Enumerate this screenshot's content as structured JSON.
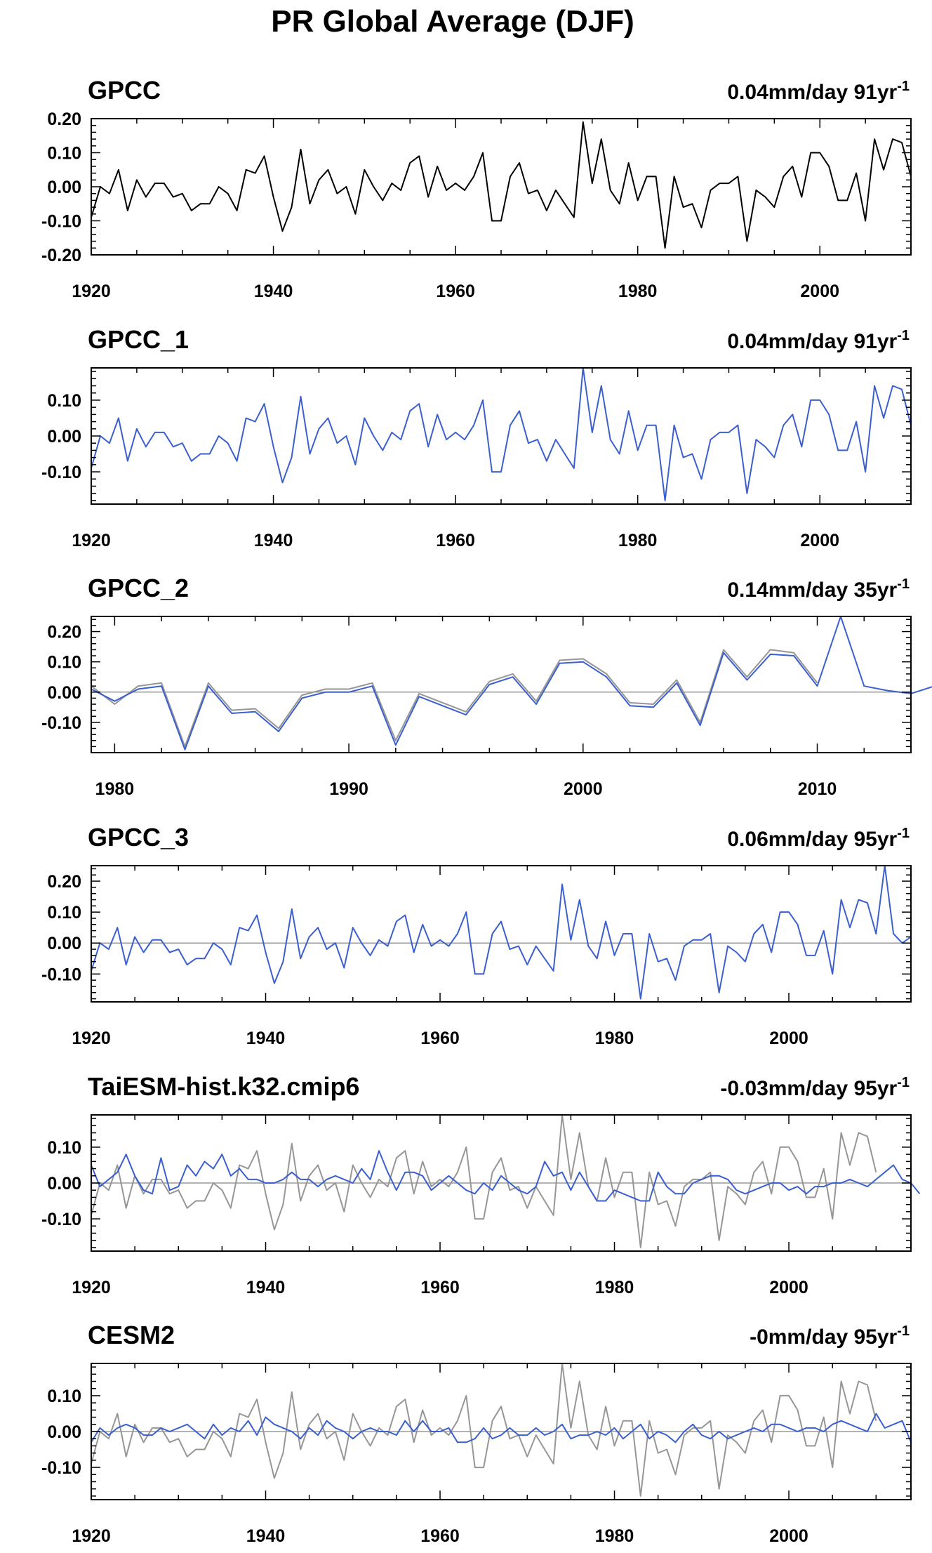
{
  "figure_title": "PR Global Average (DJF)",
  "colors": {
    "obs_black": "#000000",
    "model_blue": "#3b5fcf",
    "reference_gray": "#969696",
    "axis": "#000000",
    "zero_line": "#9a9a9a"
  },
  "chart_data": [
    {
      "type": "line",
      "title": "GPCC",
      "trend_text": "0.04mm/day 91yr",
      "trend_superscript": "-1",
      "xlim": [
        1920,
        2010
      ],
      "ylim": [
        -0.2,
        0.2
      ],
      "xticks": [
        1920,
        1940,
        1960,
        1980,
        2000
      ],
      "xtick_labels": [
        "1920",
        "1940",
        "1960",
        "1980",
        "2000"
      ],
      "yticks": [
        -0.2,
        -0.1,
        0.0,
        0.1,
        0.2
      ],
      "ytick_labels": [
        "-0.20",
        "-0.10",
        "0.00",
        "0.10",
        "0.20"
      ],
      "zero_line": false,
      "series": [
        {
          "role": "primary",
          "color": "#000000",
          "x_start": 1920,
          "values": [
            -0.09,
            0.0,
            -0.02,
            0.05,
            -0.07,
            0.02,
            -0.03,
            0.01,
            0.01,
            -0.03,
            -0.02,
            -0.07,
            -0.05,
            -0.05,
            0.0,
            -0.02,
            -0.07,
            0.05,
            0.04,
            0.09,
            -0.03,
            -0.13,
            -0.06,
            0.11,
            -0.05,
            0.02,
            0.05,
            -0.02,
            0.0,
            -0.08,
            0.05,
            0.0,
            -0.04,
            0.01,
            -0.01,
            0.07,
            0.09,
            -0.03,
            0.06,
            -0.01,
            0.01,
            -0.01,
            0.03,
            0.1,
            -0.1,
            -0.1,
            0.03,
            0.07,
            -0.02,
            -0.01,
            -0.07,
            -0.01,
            -0.05,
            -0.09,
            0.19,
            0.01,
            0.14,
            -0.01,
            -0.05,
            0.07,
            -0.04,
            0.03,
            0.03,
            -0.18,
            0.03,
            -0.06,
            -0.05,
            -0.12,
            -0.01,
            0.01,
            0.01,
            0.03,
            -0.16,
            -0.01,
            -0.03,
            -0.06,
            0.03,
            0.06,
            -0.03,
            0.1,
            0.1,
            0.06,
            -0.04,
            -0.04,
            0.04,
            -0.1,
            0.14,
            0.05,
            0.14,
            0.13,
            0.03
          ]
        }
      ]
    },
    {
      "type": "line",
      "title": "GPCC_1",
      "trend_text": "0.04mm/day 91yr",
      "trend_superscript": "-1",
      "xlim": [
        1920,
        2010
      ],
      "ylim": [
        -0.19,
        0.19
      ],
      "xticks": [
        1920,
        1940,
        1960,
        1980,
        2000
      ],
      "xtick_labels": [
        "1920",
        "1940",
        "1960",
        "1980",
        "2000"
      ],
      "yticks": [
        -0.1,
        0.0,
        0.1
      ],
      "ytick_labels": [
        "-0.10",
        "0.00",
        "0.10"
      ],
      "zero_line": false,
      "series": [
        {
          "role": "primary",
          "color": "#3b5fcf",
          "x_start": 1920,
          "values": [
            -0.09,
            0.0,
            -0.02,
            0.05,
            -0.07,
            0.02,
            -0.03,
            0.01,
            0.01,
            -0.03,
            -0.02,
            -0.07,
            -0.05,
            -0.05,
            0.0,
            -0.02,
            -0.07,
            0.05,
            0.04,
            0.09,
            -0.03,
            -0.13,
            -0.06,
            0.11,
            -0.05,
            0.02,
            0.05,
            -0.02,
            0.0,
            -0.08,
            0.05,
            0.0,
            -0.04,
            0.01,
            -0.01,
            0.07,
            0.09,
            -0.03,
            0.06,
            -0.01,
            0.01,
            -0.01,
            0.03,
            0.1,
            -0.1,
            -0.1,
            0.03,
            0.07,
            -0.02,
            -0.01,
            -0.07,
            -0.01,
            -0.05,
            -0.09,
            0.19,
            0.01,
            0.14,
            -0.01,
            -0.05,
            0.07,
            -0.04,
            0.03,
            0.03,
            -0.18,
            0.03,
            -0.06,
            -0.05,
            -0.12,
            -0.01,
            0.01,
            0.01,
            0.03,
            -0.16,
            -0.01,
            -0.03,
            -0.06,
            0.03,
            0.06,
            -0.03,
            0.1,
            0.1,
            0.06,
            -0.04,
            -0.04,
            0.04,
            -0.1,
            0.14,
            0.05,
            0.14,
            0.13,
            0.03
          ]
        }
      ]
    },
    {
      "type": "line",
      "title": "GPCC_2",
      "trend_text": "0.14mm/day 35yr",
      "trend_superscript": "-1",
      "xlim": [
        1979,
        2014
      ],
      "ylim": [
        -0.2,
        0.25
      ],
      "xticks": [
        1980,
        1990,
        2000,
        2010
      ],
      "xtick_labels": [
        "1980",
        "1990",
        "2000",
        "2010"
      ],
      "yticks": [
        -0.1,
        0.0,
        0.1,
        0.2
      ],
      "ytick_labels": [
        "-0.10",
        "0.00",
        "0.10",
        "0.20"
      ],
      "zero_line": true,
      "series": [
        {
          "role": "reference",
          "color": "#969696",
          "x_start": 1979,
          "values": [
            0.02,
            -0.04,
            0.02,
            0.03,
            -0.18,
            0.03,
            -0.06,
            -0.055,
            -0.12,
            -0.01,
            0.01,
            0.01,
            0.03,
            -0.16,
            -0.005,
            -0.035,
            -0.065,
            0.035,
            0.06,
            -0.03,
            0.105,
            0.11,
            0.06,
            -0.035,
            -0.04,
            0.04,
            -0.1,
            0.14,
            0.05,
            0.14,
            0.13,
            0.03
          ]
        },
        {
          "role": "primary",
          "color": "#3b5fcf",
          "x_start": 1979,
          "values": [
            0.01,
            -0.03,
            0.01,
            0.02,
            -0.19,
            0.02,
            -0.07,
            -0.065,
            -0.13,
            -0.02,
            0.0,
            0.0,
            0.02,
            -0.175,
            -0.015,
            -0.045,
            -0.075,
            0.025,
            0.05,
            -0.04,
            0.095,
            0.1,
            0.05,
            -0.045,
            -0.05,
            0.03,
            -0.11,
            0.13,
            0.04,
            0.125,
            0.12,
            0.02,
            0.25,
            0.02,
            0.005,
            -0.005,
            0.02
          ]
        }
      ]
    },
    {
      "type": "line",
      "title": "GPCC_3",
      "trend_text": "0.06mm/day 95yr",
      "trend_superscript": "-1",
      "xlim": [
        1920,
        2014
      ],
      "ylim": [
        -0.19,
        0.25
      ],
      "xticks": [
        1920,
        1940,
        1960,
        1980,
        2000
      ],
      "xtick_labels": [
        "1920",
        "1940",
        "1960",
        "1980",
        "2000"
      ],
      "yticks": [
        -0.1,
        0.0,
        0.1,
        0.2
      ],
      "ytick_labels": [
        "-0.10",
        "0.00",
        "0.10",
        "0.20"
      ],
      "zero_line": true,
      "series": [
        {
          "role": "primary",
          "color": "#3b5fcf",
          "x_start": 1920,
          "values": [
            -0.09,
            0.0,
            -0.02,
            0.05,
            -0.07,
            0.02,
            -0.03,
            0.01,
            0.01,
            -0.03,
            -0.02,
            -0.07,
            -0.05,
            -0.05,
            0.0,
            -0.02,
            -0.07,
            0.05,
            0.04,
            0.09,
            -0.03,
            -0.13,
            -0.06,
            0.11,
            -0.05,
            0.02,
            0.05,
            -0.02,
            0.0,
            -0.08,
            0.05,
            0.0,
            -0.04,
            0.01,
            -0.01,
            0.07,
            0.09,
            -0.03,
            0.06,
            -0.01,
            0.01,
            -0.01,
            0.03,
            0.1,
            -0.1,
            -0.1,
            0.03,
            0.07,
            -0.02,
            -0.01,
            -0.07,
            -0.01,
            -0.05,
            -0.09,
            0.19,
            0.01,
            0.14,
            -0.01,
            -0.05,
            0.07,
            -0.04,
            0.03,
            0.03,
            -0.18,
            0.03,
            -0.06,
            -0.05,
            -0.12,
            -0.01,
            0.01,
            0.01,
            0.03,
            -0.16,
            -0.01,
            -0.03,
            -0.06,
            0.03,
            0.06,
            -0.03,
            0.1,
            0.1,
            0.06,
            -0.04,
            -0.04,
            0.04,
            -0.1,
            0.14,
            0.05,
            0.14,
            0.13,
            0.03,
            0.25,
            0.03,
            0.0,
            0.02
          ]
        }
      ]
    },
    {
      "type": "line",
      "title": "TaiESM-hist.k32.cmip6",
      "trend_text": "-0.03mm/day 95yr",
      "trend_superscript": "-1",
      "xlim": [
        1920,
        2014
      ],
      "ylim": [
        -0.19,
        0.19
      ],
      "xticks": [
        1920,
        1940,
        1960,
        1980,
        2000
      ],
      "xtick_labels": [
        "1920",
        "1940",
        "1960",
        "1980",
        "2000"
      ],
      "yticks": [
        -0.1,
        0.0,
        0.1
      ],
      "ytick_labels": [
        "-0.10",
        "0.00",
        "0.10"
      ],
      "zero_line": true,
      "series": [
        {
          "role": "reference",
          "color": "#969696",
          "x_start": 1920,
          "values": [
            -0.09,
            0.0,
            -0.02,
            0.05,
            -0.07,
            0.02,
            -0.03,
            0.01,
            0.01,
            -0.03,
            -0.02,
            -0.07,
            -0.05,
            -0.05,
            0.0,
            -0.02,
            -0.07,
            0.05,
            0.04,
            0.09,
            -0.03,
            -0.13,
            -0.06,
            0.11,
            -0.05,
            0.02,
            0.05,
            -0.02,
            0.0,
            -0.08,
            0.05,
            0.0,
            -0.04,
            0.01,
            -0.01,
            0.07,
            0.09,
            -0.03,
            0.06,
            -0.01,
            0.01,
            -0.01,
            0.03,
            0.1,
            -0.1,
            -0.1,
            0.03,
            0.07,
            -0.02,
            -0.01,
            -0.07,
            -0.01,
            -0.05,
            -0.09,
            0.19,
            0.01,
            0.14,
            -0.01,
            -0.05,
            0.07,
            -0.04,
            0.03,
            0.03,
            -0.18,
            0.03,
            -0.06,
            -0.05,
            -0.12,
            -0.01,
            0.01,
            0.01,
            0.03,
            -0.16,
            -0.01,
            -0.03,
            -0.06,
            0.03,
            0.06,
            -0.03,
            0.1,
            0.1,
            0.06,
            -0.04,
            -0.04,
            0.04,
            -0.1,
            0.14,
            0.05,
            0.14,
            0.13,
            0.03
          ]
        },
        {
          "role": "primary",
          "color": "#3b5fcf",
          "x_start": 1920,
          "values": [
            0.05,
            -0.01,
            0.01,
            0.03,
            0.08,
            0.02,
            -0.02,
            -0.03,
            0.07,
            -0.02,
            -0.01,
            0.05,
            0.02,
            0.06,
            0.04,
            0.08,
            0.02,
            0.04,
            0.01,
            0.01,
            0.0,
            0.0,
            0.01,
            0.03,
            0.01,
            0.01,
            -0.01,
            0.01,
            0.02,
            0.01,
            0.0,
            0.04,
            0.01,
            0.09,
            0.03,
            -0.02,
            0.03,
            0.03,
            0.02,
            -0.02,
            0.0,
            0.02,
            0.0,
            -0.02,
            -0.03,
            0.0,
            -0.02,
            0.02,
            0.0,
            -0.02,
            -0.03,
            -0.01,
            0.06,
            0.02,
            0.03,
            -0.02,
            0.03,
            -0.01,
            -0.05,
            -0.05,
            -0.02,
            -0.03,
            -0.04,
            -0.05,
            -0.05,
            0.03,
            -0.01,
            -0.03,
            -0.03,
            0.0,
            0.01,
            0.02,
            0.02,
            0.01,
            -0.02,
            -0.03,
            -0.02,
            -0.01,
            0.0,
            0.0,
            -0.02,
            -0.01,
            -0.03,
            -0.01,
            -0.01,
            0.0,
            0.0,
            0.01,
            0.0,
            -0.01,
            0.01,
            0.03,
            0.05,
            0.01,
            0.0,
            -0.03
          ]
        }
      ]
    },
    {
      "type": "line",
      "title": "CESM2",
      "trend_text": "-0mm/day 95yr",
      "trend_superscript": "-1",
      "xlim": [
        1920,
        2014
      ],
      "ylim": [
        -0.19,
        0.19
      ],
      "xticks": [
        1920,
        1940,
        1960,
        1980,
        2000
      ],
      "xtick_labels": [
        "1920",
        "1940",
        "1960",
        "1980",
        "2000"
      ],
      "yticks": [
        -0.1,
        0.0,
        0.1
      ],
      "ytick_labels": [
        "-0.10",
        "0.00",
        "0.10"
      ],
      "zero_line": true,
      "series": [
        {
          "role": "reference",
          "color": "#969696",
          "x_start": 1920,
          "values": [
            -0.09,
            0.0,
            -0.02,
            0.05,
            -0.07,
            0.02,
            -0.03,
            0.01,
            0.01,
            -0.03,
            -0.02,
            -0.07,
            -0.05,
            -0.05,
            0.0,
            -0.02,
            -0.07,
            0.05,
            0.04,
            0.09,
            -0.03,
            -0.13,
            -0.06,
            0.11,
            -0.05,
            0.02,
            0.05,
            -0.02,
            0.0,
            -0.08,
            0.05,
            0.0,
            -0.04,
            0.01,
            -0.01,
            0.07,
            0.09,
            -0.03,
            0.06,
            -0.01,
            0.01,
            -0.01,
            0.03,
            0.1,
            -0.1,
            -0.1,
            0.03,
            0.07,
            -0.02,
            -0.01,
            -0.07,
            -0.01,
            -0.05,
            -0.09,
            0.19,
            0.01,
            0.14,
            -0.01,
            -0.05,
            0.07,
            -0.04,
            0.03,
            0.03,
            -0.18,
            0.03,
            -0.06,
            -0.05,
            -0.12,
            -0.01,
            0.01,
            0.01,
            0.03,
            -0.16,
            -0.01,
            -0.03,
            -0.06,
            0.03,
            0.06,
            -0.03,
            0.1,
            0.1,
            0.06,
            -0.04,
            -0.04,
            0.04,
            -0.1,
            0.14,
            0.05,
            0.14,
            0.13,
            0.03
          ]
        },
        {
          "role": "primary",
          "color": "#3b5fcf",
          "x_start": 1920,
          "values": [
            -0.03,
            0.01,
            -0.01,
            0.01,
            0.02,
            0.01,
            -0.01,
            -0.01,
            0.01,
            0.0,
            0.01,
            0.02,
            0.0,
            -0.02,
            0.02,
            -0.01,
            0.01,
            0.0,
            0.03,
            -0.01,
            0.04,
            0.02,
            0.01,
            0.0,
            -0.02,
            0.01,
            -0.01,
            0.03,
            0.01,
            0.0,
            -0.02,
            0.0,
            0.01,
            0.0,
            0.0,
            -0.01,
            0.03,
            0.0,
            0.03,
            0.0,
            0.0,
            0.01,
            -0.03,
            -0.03,
            -0.02,
            0.01,
            -0.02,
            -0.01,
            0.01,
            -0.01,
            -0.01,
            0.01,
            -0.01,
            0.0,
            0.02,
            -0.02,
            -0.01,
            -0.01,
            0.0,
            -0.01,
            0.01,
            -0.02,
            0.0,
            0.02,
            -0.02,
            0.0,
            -0.01,
            -0.03,
            0.0,
            0.02,
            -0.01,
            -0.02,
            0.0,
            -0.02,
            -0.01,
            0.0,
            0.01,
            0.0,
            0.02,
            0.02,
            0.01,
            0.0,
            0.01,
            0.01,
            0.0,
            0.02,
            0.03,
            0.02,
            0.01,
            0.0,
            0.05,
            0.01,
            0.02,
            0.03,
            -0.03
          ]
        }
      ]
    }
  ]
}
